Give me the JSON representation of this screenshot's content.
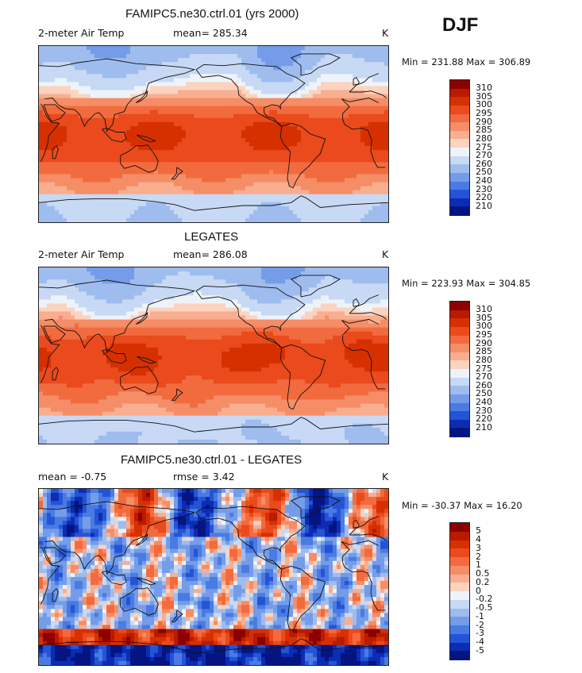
{
  "season": "DJF",
  "chart_data": [
    {
      "type": "heatmap",
      "title": "FAMIPC5.ne30.ctrl.01 (yrs 2000)",
      "variable_label": "2-meter Air Temp",
      "mean_label": "mean=",
      "mean_value": "285.34",
      "units": "K",
      "min_label": "Min =",
      "min": "231.88",
      "max_label": "Max =",
      "max": "306.89",
      "palette": "warm",
      "levels": [
        "310",
        "305",
        "300",
        "295",
        "290",
        "285",
        "280",
        "275",
        "270",
        "260",
        "250",
        "240",
        "230",
        "220",
        "210"
      ],
      "colors": [
        "#8c0000",
        "#b81b00",
        "#d73000",
        "#ea4a1c",
        "#f26b3e",
        "#f58d66",
        "#f8ae8f",
        "#fbd3bf",
        "#eef3fa",
        "#c7d9f4",
        "#9fbcef",
        "#749ce8",
        "#4a7be2",
        "#2454d6",
        "#0d2cb4",
        "#041582"
      ]
    },
    {
      "type": "heatmap",
      "title": "LEGATES",
      "variable_label": "2-meter Air Temp",
      "mean_label": "mean=",
      "mean_value": "286.08",
      "units": "K",
      "min_label": "Min =",
      "min": "223.93",
      "max_label": "Max =",
      "max": "304.85",
      "palette": "warm",
      "levels": [
        "310",
        "305",
        "300",
        "295",
        "290",
        "285",
        "280",
        "275",
        "270",
        "260",
        "250",
        "240",
        "230",
        "220",
        "210"
      ],
      "colors": [
        "#8c0000",
        "#b81b00",
        "#d73000",
        "#ea4a1c",
        "#f26b3e",
        "#f58d66",
        "#f8ae8f",
        "#fbd3bf",
        "#eef3fa",
        "#c7d9f4",
        "#9fbcef",
        "#749ce8",
        "#4a7be2",
        "#2454d6",
        "#0d2cb4",
        "#041582"
      ]
    },
    {
      "type": "heatmap",
      "title": "FAMIPC5.ne30.ctrl.01 - LEGATES",
      "variable_label": "mean =",
      "mean_label": "",
      "mean_value": "-0.75",
      "rmse_label": "rmse =",
      "rmse_value": "3.42",
      "units": "K",
      "min_label": "Min =",
      "min": "-30.37",
      "max_label": "Max =",
      "max": "16.20",
      "palette": "diff",
      "levels": [
        "5",
        "4",
        "3",
        "2",
        "1",
        "0.5",
        "0.2",
        "0",
        "-0.2",
        "-0.5",
        "-1",
        "-2",
        "-3",
        "-4",
        "-5"
      ],
      "colors": [
        "#8c0000",
        "#b81b00",
        "#d73000",
        "#ea4a1c",
        "#f26b3e",
        "#f58d66",
        "#f8ae8f",
        "#fbd3bf",
        "#eef3fa",
        "#c7d9f4",
        "#9fbcef",
        "#749ce8",
        "#4a7be2",
        "#2454d6",
        "#0d2cb4",
        "#041582"
      ]
    }
  ]
}
